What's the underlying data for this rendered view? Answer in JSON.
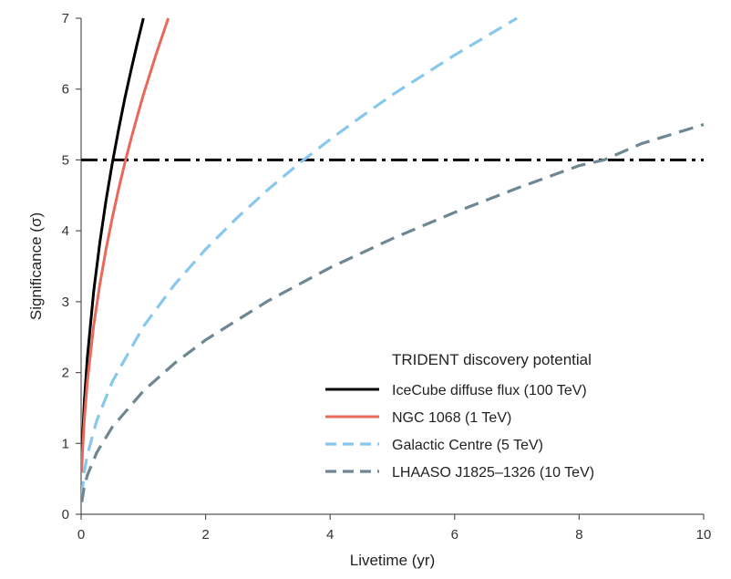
{
  "chart_data": {
    "type": "line",
    "title": "",
    "xlabel": "Livetime (yr)",
    "ylabel": "Significance (σ)",
    "xlim": [
      0,
      10
    ],
    "ylim": [
      0,
      7
    ],
    "xticks": [
      0,
      2,
      4,
      6,
      8,
      10
    ],
    "yticks": [
      0,
      1,
      2,
      3,
      4,
      5,
      6,
      7
    ],
    "grid": false,
    "legend": {
      "title": "TRIDENT discovery potential",
      "placement": "bottom-right"
    },
    "series": [
      {
        "name": "IceCube diffuse flux (100 TeV)",
        "color": "#000000",
        "style": "solid",
        "x": [
          0.01,
          0.02,
          0.05,
          0.1,
          0.2,
          0.3,
          0.4,
          0.5,
          0.6,
          0.7,
          0.8,
          0.9,
          1.0
        ],
        "y": [
          0.7,
          0.99,
          1.57,
          2.21,
          3.13,
          3.83,
          4.43,
          4.95,
          5.42,
          5.86,
          6.26,
          6.64,
          7.0
        ]
      },
      {
        "name": "NGC 1068 (1 TeV)",
        "color": "#e8685a",
        "style": "solid",
        "x": [
          0.01,
          0.02,
          0.05,
          0.1,
          0.2,
          0.3,
          0.4,
          0.5,
          0.6,
          0.7,
          0.8,
          0.9,
          1.0,
          1.1,
          1.2,
          1.3,
          1.4
        ],
        "y": [
          0.59,
          0.84,
          1.32,
          1.87,
          2.65,
          3.24,
          3.74,
          4.18,
          4.58,
          4.95,
          5.29,
          5.61,
          5.92,
          6.2,
          6.48,
          6.74,
          7.0
        ]
      },
      {
        "name": "Galactic Centre (5 TeV)",
        "color": "#88c8ec",
        "style": "dashed",
        "x": [
          0.01,
          0.05,
          0.1,
          0.25,
          0.5,
          1,
          1.5,
          2,
          2.5,
          3,
          3.5,
          4,
          4.5,
          5,
          5.5,
          6,
          6.5,
          7.0
        ],
        "y": [
          0.26,
          0.59,
          0.84,
          1.32,
          1.87,
          2.65,
          3.24,
          3.74,
          4.18,
          4.58,
          4.95,
          5.29,
          5.61,
          5.92,
          6.2,
          6.48,
          6.74,
          7.0
        ]
      },
      {
        "name": "LHAASO J1825–1326 (10 TeV)",
        "color": "#6e8893",
        "style": "dashed",
        "x": [
          0.01,
          0.05,
          0.1,
          0.25,
          0.5,
          1,
          1.5,
          2,
          3,
          4,
          5,
          6,
          7,
          8,
          8.4,
          9,
          10
        ],
        "y": [
          0.17,
          0.39,
          0.55,
          0.87,
          1.23,
          1.74,
          2.13,
          2.46,
          3.01,
          3.48,
          3.89,
          4.26,
          4.6,
          4.92,
          5.0,
          5.23,
          5.5
        ]
      },
      {
        "name": "",
        "color": "#000000",
        "style": "dashdot",
        "x": [
          0,
          10
        ],
        "y": [
          5,
          5
        ]
      }
    ]
  }
}
